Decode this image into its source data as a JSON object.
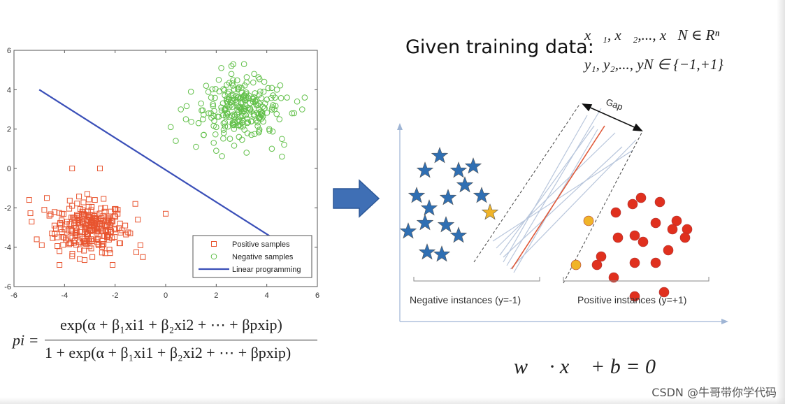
{
  "chart_data": [
    {
      "type": "scatter",
      "xlim": [
        -6,
        6
      ],
      "ylim": [
        -6,
        6
      ],
      "xticks": [
        "-6",
        "-4",
        "-2",
        "0",
        "2",
        "4",
        "6"
      ],
      "yticks": [
        "6",
        "4",
        "2",
        "0",
        "-2",
        "-4",
        "-6"
      ],
      "grid": false,
      "legend_position": "bottom-right",
      "series": [
        {
          "name": "Positive samples",
          "marker": "square",
          "color": "#e8542f",
          "center": [
            -3.0,
            -3.0
          ],
          "spread": [
            0.9,
            0.9
          ],
          "count": 260,
          "points": [
            [
              -5.3,
              -2.7
            ],
            [
              -5.1,
              -3.6
            ],
            [
              -4.9,
              -3.9
            ],
            [
              -4.8,
              -2.1
            ],
            [
              -4.6,
              -2.4
            ],
            [
              -4.5,
              -3.3
            ],
            [
              -4.4,
              -2.9
            ],
            [
              -4.3,
              -3.5
            ],
            [
              -4.2,
              -4.2
            ],
            [
              -4.1,
              -2.3
            ],
            [
              -4.0,
              -3.1
            ],
            [
              -3.9,
              -2.7
            ],
            [
              -3.8,
              -3.8
            ],
            [
              -3.7,
              -1.9
            ],
            [
              -3.6,
              -2.6
            ],
            [
              -3.5,
              -3.4
            ],
            [
              -3.4,
              -4.1
            ],
            [
              -3.3,
              -2.2
            ],
            [
              -3.2,
              -3.0
            ],
            [
              -3.1,
              -3.7
            ],
            [
              -3.0,
              -2.5
            ],
            [
              -2.9,
              -4.5
            ],
            [
              -2.8,
              -1.6
            ],
            [
              -2.7,
              -3.2
            ],
            [
              -2.6,
              -2.8
            ],
            [
              -2.5,
              -3.9
            ],
            [
              -2.4,
              -2.0
            ],
            [
              -2.3,
              -3.5
            ],
            [
              -2.2,
              -4.3
            ],
            [
              -2.1,
              -2.7
            ],
            [
              -2.0,
              -3.1
            ],
            [
              -1.9,
              -2.3
            ],
            [
              -1.8,
              -3.8
            ],
            [
              -1.6,
              -2.9
            ],
            [
              -1.4,
              -3.3
            ],
            [
              -1.2,
              -1.8
            ],
            [
              -1.1,
              -2.6
            ],
            [
              -1.0,
              -3.9
            ],
            [
              -0.9,
              -4.5
            ],
            [
              0.0,
              -2.3
            ],
            [
              -3.7,
              0.0
            ],
            [
              -2.6,
              0.0
            ],
            [
              -5.4,
              -1.6
            ],
            [
              -4.7,
              -1.5
            ],
            [
              -3.1,
              -1.3
            ],
            [
              -4.2,
              -4.9
            ],
            [
              -2.1,
              -4.9
            ],
            [
              -3.4,
              -4.6
            ]
          ]
        },
        {
          "name": "Negative samples",
          "marker": "circle",
          "color": "#62c04a",
          "center": [
            3.0,
            3.0
          ],
          "spread": [
            1.0,
            1.0
          ],
          "count": 260,
          "points": [
            [
              0.2,
              2.1
            ],
            [
              0.4,
              1.4
            ],
            [
              0.6,
              3.0
            ],
            [
              0.8,
              2.5
            ],
            [
              1.0,
              3.9
            ],
            [
              1.2,
              1.1
            ],
            [
              1.3,
              2.3
            ],
            [
              1.4,
              3.3
            ],
            [
              1.5,
              1.7
            ],
            [
              1.6,
              4.2
            ],
            [
              1.7,
              2.8
            ],
            [
              1.8,
              3.6
            ],
            [
              1.9,
              1.3
            ],
            [
              2.0,
              2.1
            ],
            [
              2.1,
              4.5
            ],
            [
              2.2,
              3.1
            ],
            [
              2.3,
              1.8
            ],
            [
              2.4,
              2.6
            ],
            [
              2.5,
              3.9
            ],
            [
              2.6,
              5.2
            ],
            [
              2.7,
              2.2
            ],
            [
              2.8,
              3.4
            ],
            [
              2.9,
              1.6
            ],
            [
              3.0,
              4.1
            ],
            [
              3.1,
              2.9
            ],
            [
              3.2,
              0.8
            ],
            [
              3.3,
              3.7
            ],
            [
              3.4,
              2.4
            ],
            [
              3.5,
              4.8
            ],
            [
              3.6,
              3.2
            ],
            [
              3.7,
              1.9
            ],
            [
              3.8,
              2.7
            ],
            [
              3.9,
              4.4
            ],
            [
              4.0,
              3.5
            ],
            [
              4.1,
              2.0
            ],
            [
              4.2,
              1.0
            ],
            [
              4.3,
              3.0
            ],
            [
              4.4,
              4.0
            ],
            [
              4.5,
              2.5
            ],
            [
              4.6,
              1.5
            ],
            [
              4.8,
              3.6
            ],
            [
              5.0,
              2.8
            ],
            [
              5.2,
              3.4
            ],
            [
              5.4,
              3.0
            ],
            [
              5.5,
              3.6
            ],
            [
              2.2,
              5.1
            ],
            [
              2.6,
              4.8
            ],
            [
              3.1,
              5.3
            ],
            [
              2.0,
              0.9
            ],
            [
              4.6,
              0.6
            ]
          ]
        },
        {
          "name": "Linear programming",
          "type": "line",
          "color": "#3a4fb8",
          "x": [
            -5.0,
            4.2
          ],
          "y": [
            4.0,
            -3.5
          ]
        }
      ]
    },
    {
      "type": "scatter",
      "grid": false,
      "series": [
        {
          "marker": "star",
          "color": "#2f6fb3",
          "x": [
            1.2,
            1.9,
            2.8,
            3.5,
            0.8,
            1.4,
            2.3,
            3.1,
            3.9,
            0.4,
            1.2,
            2.2,
            2.8,
            1.3,
            2.0
          ],
          "y": [
            7.2,
            7.9,
            7.2,
            7.4,
            6.0,
            5.4,
            5.9,
            6.5,
            6.0,
            4.3,
            4.7,
            4.6,
            4.1,
            3.3,
            3.2
          ]
        },
        {
          "marker": "star",
          "color": "#f0b429",
          "x": [
            4.3
          ],
          "y": [
            5.2
          ]
        },
        {
          "marker": "circle",
          "color": "#e0301e",
          "x": [
            11.1,
            11.5,
            12.4,
            13.2,
            10.3,
            11.2,
            12.2,
            13.0,
            13.7,
            9.6,
            10.4,
            11.6,
            12.8,
            13.6,
            9.4,
            10.2,
            11.2,
            12.2,
            11.2,
            12.6
          ],
          "y": [
            5.6,
            5.9,
            5.7,
            4.8,
            5.2,
            4.1,
            4.7,
            4.4,
            4.4,
            3.1,
            4.0,
            3.8,
            3.4,
            4.0,
            2.7,
            2.1,
            2.8,
            2.8,
            1.2,
            1.4
          ]
        },
        {
          "marker": "circle",
          "color": "#f0b429",
          "x": [
            9.0,
            8.4
          ],
          "y": [
            4.8,
            2.7
          ]
        }
      ]
    }
  ],
  "given_text": "Given training data:",
  "given_line_1": "x⃗₁, x⃗₂,..., x⃗N ∈ Rⁿ",
  "given_line_2": "y₁, y₂,..., yN ∈ {−1,+1}",
  "gap_label": "Gap",
  "neg_label": "Negative instances (y=-1)",
  "pos_label": "Positive instances (y=+1)",
  "pi_lhs": "pi =",
  "pi_num": "exp(α + β₁xi1 + β₂xi2 + ⋯ + βpxip)",
  "pi_den": "1 + exp(α + β₁xi1 + β₂xi2 + ⋯ + βpxip)",
  "hyperplane_eq": "w⃗ · x⃗ + b = 0",
  "watermark": "CSDN @牛哥带你学代码",
  "colors": {
    "arrow": "#3f6fb5",
    "axis": "#9fb5d5"
  }
}
